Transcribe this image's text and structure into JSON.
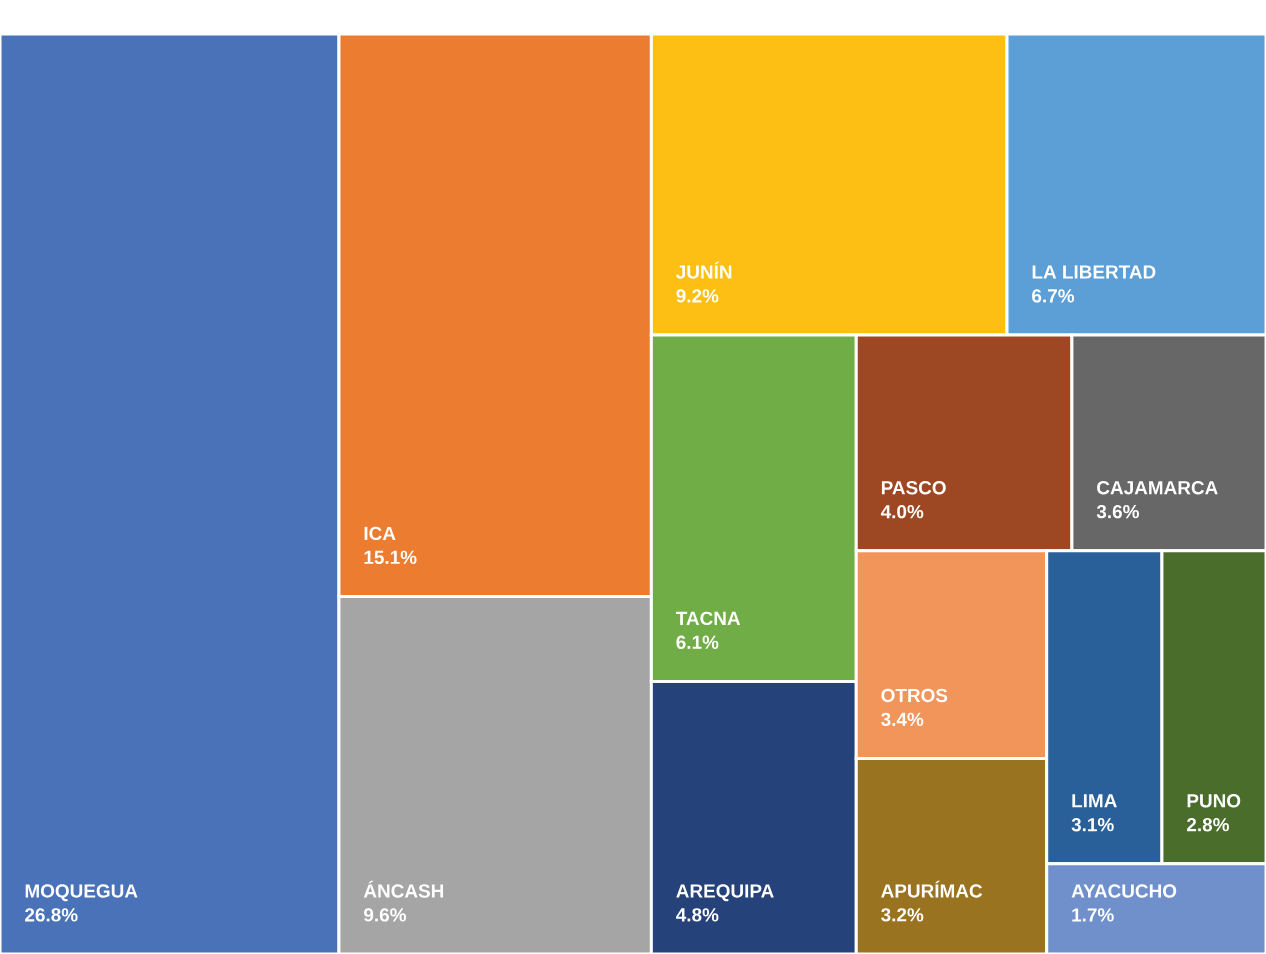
{
  "chart_data": {
    "type": "other",
    "categories": [
      "MOQUEGUA",
      "ICA",
      "ÁNCASH",
      "JUNÍN",
      "LA LIBERTAD",
      "TACNA",
      "AREQUIPA",
      "PASCO",
      "CAJAMARCA",
      "OTROS",
      "APURÍMAC",
      "LIMA",
      "PUNO",
      "AYACUCHO"
    ],
    "values": [
      26.8,
      15.1,
      9.6,
      9.2,
      6.7,
      6.1,
      4.8,
      4.0,
      3.6,
      3.4,
      3.2,
      3.1,
      2.8,
      1.7
    ],
    "value_labels": [
      "26.8%",
      "15.1%",
      "9.6%",
      "9.2%",
      "6.7%",
      "6.1%",
      "4.8%",
      "4.0%",
      "3.6%",
      "3.4%",
      "3.2%",
      "3.1%",
      "2.8%",
      "1.7%"
    ],
    "colors": [
      "#4a72b8",
      "#ec7d30",
      "#a5a5a5",
      "#fdbf13",
      "#5c9fd6",
      "#70ad46",
      "#26427a",
      "#9e4823",
      "#676767",
      "#f2955a",
      "#9a7321",
      "#2a6099",
      "#4a6d2c",
      "#7090cc"
    ]
  }
}
